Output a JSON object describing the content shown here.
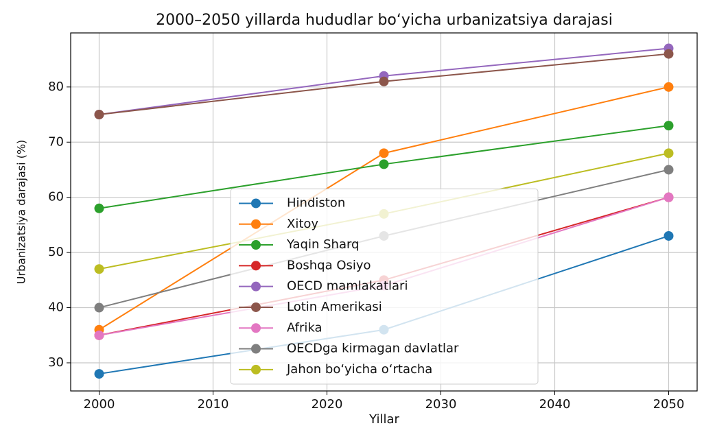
{
  "chart_data": {
    "type": "line",
    "title": "2000–2050 yillarda hududlar bo‘yicha urbanizatsiya darajasi",
    "xlabel": "Yillar",
    "ylabel": "Urbanizatsiya darajasi (%)",
    "x": [
      2000,
      2025,
      2050
    ],
    "series": [
      {
        "name": "Hindiston",
        "color": "#1f77b4",
        "values": [
          28,
          36,
          53
        ]
      },
      {
        "name": "Xitoy",
        "color": "#ff7f0e",
        "values": [
          36,
          68,
          80
        ]
      },
      {
        "name": "Yaqin Sharq",
        "color": "#2ca02c",
        "values": [
          58,
          66,
          73
        ]
      },
      {
        "name": "Boshqa Osiyo",
        "color": "#d62728",
        "values": [
          35,
          45,
          60
        ]
      },
      {
        "name": "OECD mamlakatlari",
        "color": "#9467bd",
        "values": [
          75,
          82,
          87
        ]
      },
      {
        "name": "Lotin Amerikasi",
        "color": "#8c564b",
        "values": [
          75,
          81,
          86
        ]
      },
      {
        "name": "Afrika",
        "color": "#e377c2",
        "values": [
          35,
          44,
          60
        ]
      },
      {
        "name": "OECDga kirmagan davlatlar",
        "color": "#7f7f7f",
        "values": [
          40,
          53,
          65
        ]
      },
      {
        "name": "Jahon bo‘yicha o‘rtacha",
        "color": "#bcbd22",
        "values": [
          47,
          57,
          68
        ]
      }
    ],
    "xlim": [
      1997.5,
      2052.5
    ],
    "xticks": [
      2000,
      2010,
      2020,
      2030,
      2040,
      2050
    ],
    "ylim": [
      24.9,
      89.8
    ],
    "yticks": [
      30,
      40,
      50,
      60,
      70,
      80
    ],
    "grid": true,
    "legend": "lower center"
  }
}
